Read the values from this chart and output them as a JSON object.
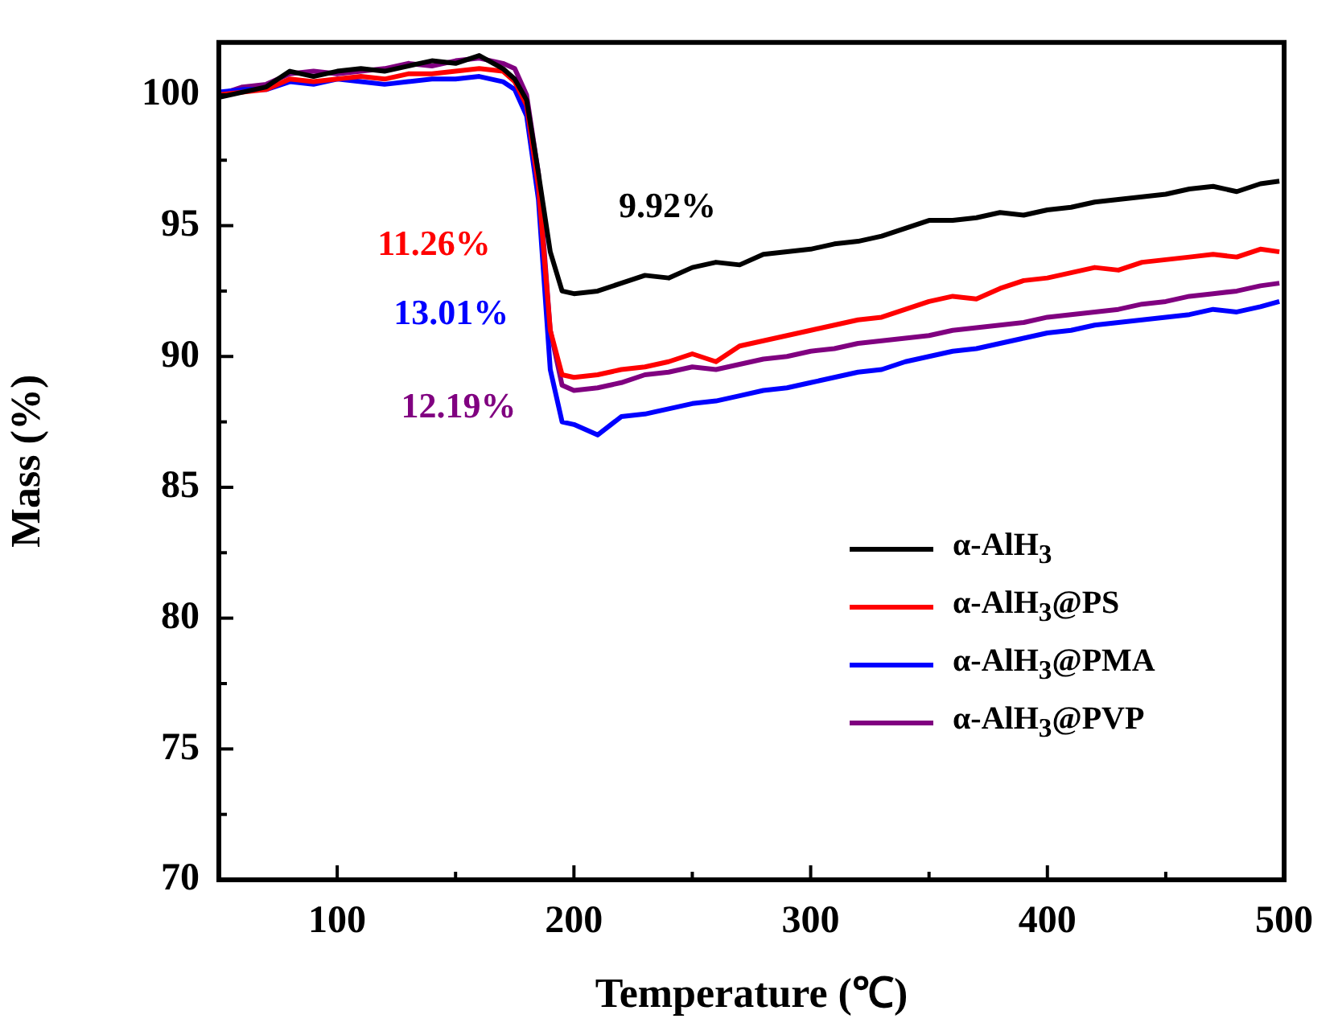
{
  "chart_data": {
    "type": "line",
    "xlabel": "Temperature (℃)",
    "ylabel": "Mass (%)",
    "x": [
      50,
      60,
      70,
      80,
      90,
      100,
      110,
      120,
      130,
      140,
      150,
      160,
      170,
      175,
      180,
      185,
      190,
      195,
      200,
      210,
      220,
      230,
      240,
      250,
      260,
      270,
      280,
      290,
      300,
      310,
      320,
      330,
      340,
      350,
      360,
      370,
      380,
      390,
      400,
      410,
      420,
      430,
      440,
      450,
      460,
      470,
      480,
      490,
      498
    ],
    "series": [
      {
        "name": "α-AlH$_{3}$",
        "color": "#000000",
        "values": [
          99.9,
          100.1,
          100.3,
          100.9,
          100.7,
          100.9,
          101.0,
          100.9,
          101.1,
          101.3,
          101.2,
          101.5,
          101.0,
          100.6,
          99.8,
          97.0,
          94.0,
          92.5,
          92.4,
          92.5,
          92.8,
          93.1,
          93.0,
          93.4,
          93.6,
          93.5,
          93.9,
          94.0,
          94.1,
          94.3,
          94.4,
          94.6,
          94.9,
          95.2,
          95.2,
          95.3,
          95.5,
          95.4,
          95.6,
          95.7,
          95.9,
          96.0,
          96.1,
          96.2,
          96.4,
          96.5,
          96.3,
          96.6,
          96.7
        ]
      },
      {
        "name": "α-AlH$_{3}$@PS",
        "color": "#ff0000",
        "values": [
          100.0,
          100.1,
          100.2,
          100.6,
          100.5,
          100.6,
          100.7,
          100.6,
          100.8,
          100.8,
          100.9,
          101.0,
          100.9,
          100.5,
          99.6,
          96.5,
          91.0,
          89.3,
          89.2,
          89.3,
          89.5,
          89.6,
          89.8,
          90.1,
          89.8,
          90.4,
          90.6,
          90.8,
          91.0,
          91.2,
          91.4,
          91.5,
          91.8,
          92.1,
          92.3,
          92.2,
          92.6,
          92.9,
          93.0,
          93.2,
          93.4,
          93.3,
          93.6,
          93.7,
          93.8,
          93.9,
          93.8,
          94.1,
          94.0
        ]
      },
      {
        "name": "α-AlH$_{3}$@PMA",
        "color": "#0000ff",
        "values": [
          100.1,
          100.2,
          100.2,
          100.5,
          100.4,
          100.6,
          100.5,
          100.4,
          100.5,
          100.6,
          100.6,
          100.7,
          100.5,
          100.2,
          99.2,
          96.0,
          89.5,
          87.5,
          87.4,
          87.0,
          87.7,
          87.8,
          88.0,
          88.2,
          88.3,
          88.5,
          88.7,
          88.8,
          89.0,
          89.2,
          89.4,
          89.5,
          89.8,
          90.0,
          90.2,
          90.3,
          90.5,
          90.7,
          90.9,
          91.0,
          91.2,
          91.3,
          91.4,
          91.5,
          91.6,
          91.8,
          91.7,
          91.9,
          92.1
        ]
      },
      {
        "name": "α-AlH$_{3}$@PVP",
        "color": "#800080",
        "values": [
          100.0,
          100.3,
          100.4,
          100.8,
          100.9,
          100.8,
          100.9,
          101.0,
          101.2,
          101.1,
          101.3,
          101.4,
          101.2,
          101.0,
          100.0,
          97.0,
          91.0,
          88.9,
          88.7,
          88.8,
          89.0,
          89.3,
          89.4,
          89.6,
          89.5,
          89.7,
          89.9,
          90.0,
          90.2,
          90.3,
          90.5,
          90.6,
          90.7,
          90.8,
          91.0,
          91.1,
          91.2,
          91.3,
          91.5,
          91.6,
          91.7,
          91.8,
          92.0,
          92.1,
          92.3,
          92.4,
          92.5,
          92.7,
          92.8
        ]
      }
    ],
    "annotations": [
      "9.92%",
      "11.26%",
      "13.01%",
      "12.19%"
    ],
    "xlim": [
      50,
      500
    ],
    "ylim": [
      70,
      102
    ],
    "xticks": [
      100,
      {
        "value": 150,
        "label": null
      },
      200,
      {
        "value": 250,
        "label": null
      },
      300,
      {
        "value": 350,
        "label": null
      },
      400,
      {
        "value": 450,
        "label": null
      },
      500
    ],
    "yticks": [
      70,
      {
        "value": 72.5,
        "label": null
      },
      75,
      {
        "value": 77.5,
        "label": null
      },
      80,
      {
        "value": 82.5,
        "label": null
      },
      85,
      {
        "value": 87.5,
        "label": null
      },
      90,
      {
        "value": 92.5,
        "label": null
      },
      95,
      {
        "value": 97.5,
        "label": null
      },
      100
    ],
    "grid": false,
    "legend": "bottom right",
    "line_style": "solid",
    "marker": "none"
  }
}
